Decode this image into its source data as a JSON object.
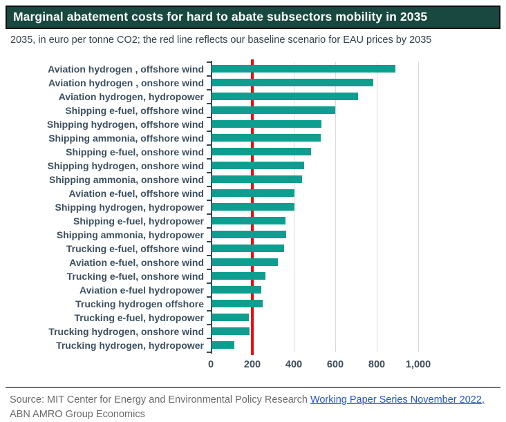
{
  "header": {
    "title": "Marginal abatement costs for hard to abate subsectors mobility in 2035",
    "subtitle": "2035, in euro per tonne CO2; the red line reflects our baseline scenario for EAU prices by 2035"
  },
  "chart_data": {
    "type": "bar",
    "orientation": "horizontal",
    "title": "Marginal abatement costs for hard to abate subsectors mobility in 2035",
    "xlabel": "euro per tonne CO2",
    "ylabel": "",
    "grid": true,
    "xlim": [
      0,
      1100
    ],
    "bar_color": "#0d9e90",
    "categories": [
      "Aviation hydrogen , offshore wind",
      "Aviation hydrogen , onshore wind",
      "Aviation hydrogen, hydropower",
      "Shipping e-fuel, offshore wind",
      "Shipping hydrogen, offshore wind",
      "Shipping ammonia, offshore wind",
      "Shipping e-fuel, onshore wind",
      "Shipping hydrogen, onshore wind",
      "Shipping ammonia, onshore wind",
      "Aviation e-fuel, offshore wind",
      "Shipping hydrogen, hydropower",
      "Shipping e-fuel, hydropower",
      "Shipping ammonia, hydropower",
      "Trucking e-fuel, offshore wind",
      "Aviation e-fuel, onshore wind",
      "Trucking e-fuel, onshore wind",
      "Aviation e-fuel hydropower",
      "Trucking hydrogen offshore",
      "Trucking e-fuel, hydropower",
      "Trucking hydrogen, onshore wind",
      "Trucking hydrogen, hydropower"
    ],
    "values": [
      885,
      780,
      705,
      595,
      530,
      525,
      480,
      445,
      435,
      400,
      400,
      355,
      360,
      350,
      320,
      260,
      240,
      245,
      180,
      182,
      110
    ],
    "baseline": {
      "value": 200,
      "color": "#f40505"
    },
    "x_ticks": {
      "values": [
        0,
        200,
        400,
        600,
        800,
        1000
      ],
      "labels": [
        "0",
        "200",
        "400",
        "600",
        "800",
        "1,000"
      ]
    },
    "legend": []
  },
  "footer": {
    "source_prefix": "Source: MIT Center for Energy and Environmental Policy Research ",
    "link_text": "Working Paper Series November 2022,",
    "source_suffix": " ABN AMRO Group Economics"
  },
  "colors": {
    "title_bar_bg": "#18483f",
    "title_text": "#ffffff",
    "bar_teal": "#0d9e90",
    "baseline_red": "#f40505",
    "axis_dark": "#39464f",
    "label_slate": "#3d5060",
    "gridline_gray": "#d9d9d9",
    "link_blue": "#2257c4",
    "footer_gray": "#6a6a6a"
  }
}
